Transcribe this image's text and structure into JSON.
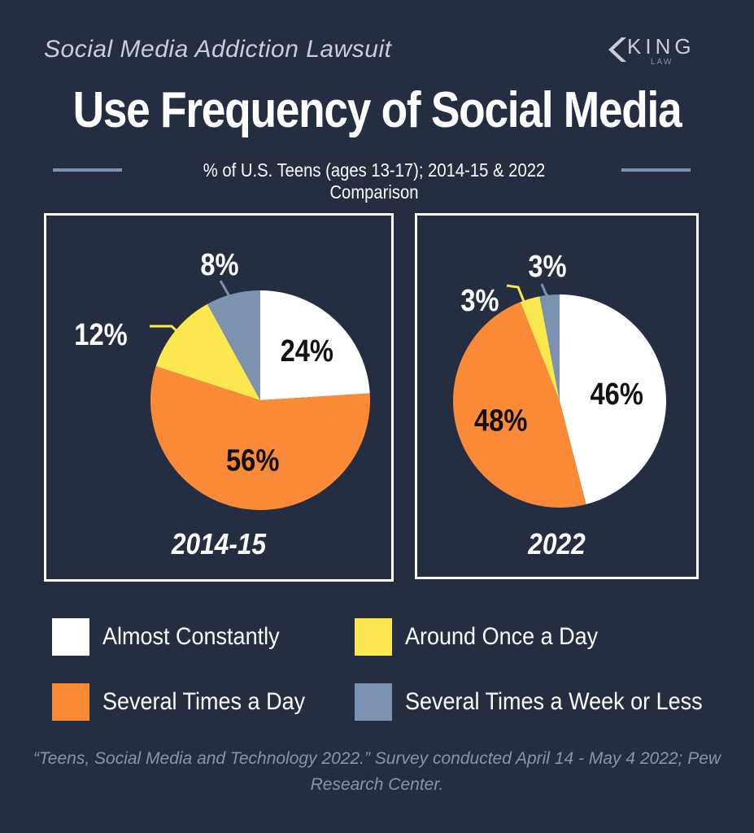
{
  "header": {
    "kicker": "Social Media Addiction Lawsuit",
    "logo_word": "KING",
    "logo_sub": "LAW",
    "title": "Use Frequency of Social Media",
    "subtitle": "% of U.S. Teens (ages 13-17); 2014-15 & 2022 Comparison"
  },
  "colors": {
    "background": "#252d40",
    "almost_constantly": "#ffffff",
    "around_once_a_day": "#fbe74f",
    "several_times_a_day": "#fa8a38",
    "several_times_a_week_or_less": "#7b92b0",
    "rule": "#7b92b0"
  },
  "chart_data": [
    {
      "type": "pie",
      "title": "2014-15",
      "categories": [
        "Almost Constantly",
        "Several Times a Day",
        "Around Once a Day",
        "Several Times a Week or Less"
      ],
      "values": [
        24,
        56,
        12,
        8
      ],
      "labels": [
        "24%",
        "56%",
        "12%",
        "8%"
      ],
      "colors": [
        "#ffffff",
        "#fa8a38",
        "#fbe74f",
        "#7b92b0"
      ]
    },
    {
      "type": "pie",
      "title": "2022",
      "categories": [
        "Almost Constantly",
        "Several Times a Day",
        "Around Once a Day",
        "Several Times a Week or Less"
      ],
      "values": [
        46,
        48,
        3,
        3
      ],
      "labels": [
        "46%",
        "48%",
        "3%",
        "3%"
      ],
      "colors": [
        "#ffffff",
        "#fa8a38",
        "#fbe74f",
        "#7b92b0"
      ]
    }
  ],
  "legend": [
    {
      "label": "Almost Constantly",
      "color": "#ffffff"
    },
    {
      "label": "Around Once a Day",
      "color": "#fbe74f"
    },
    {
      "label": "Several Times a Day",
      "color": "#fa8a38"
    },
    {
      "label": "Several Times a Week or Less",
      "color": "#7b92b0"
    }
  ],
  "source": "“Teens, Social Media and Technology 2022.” Survey conducted April 14 - May 4 2022; Pew Research Center."
}
